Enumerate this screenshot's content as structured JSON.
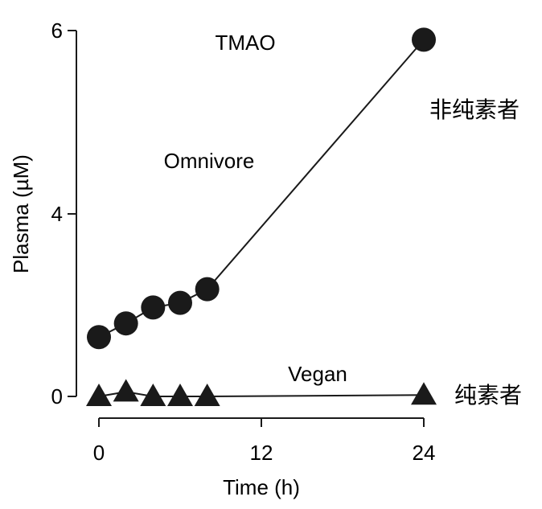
{
  "chart_data": {
    "type": "line",
    "title": "TMAO",
    "xlabel": "Time (h)",
    "ylabel": "Plasma (µM)",
    "x_ticks": [
      0,
      12,
      24
    ],
    "y_ticks": [
      0,
      4,
      6
    ],
    "xlim": [
      0,
      24
    ],
    "ylim": [
      0,
      6
    ],
    "grid": false,
    "series": [
      {
        "name": "Omnivore",
        "marker": "circle",
        "x": [
          0,
          2,
          4,
          6,
          8,
          24
        ],
        "y": [
          1.3,
          1.6,
          1.95,
          2.05,
          2.35,
          5.9
        ]
      },
      {
        "name": "Vegan",
        "marker": "triangle",
        "x": [
          0,
          2,
          4,
          6,
          8,
          24
        ],
        "y": [
          0,
          0.1,
          0,
          0,
          0,
          0.03
        ]
      }
    ],
    "annotations": {
      "omnivore_cn": "非纯素者",
      "vegan_cn": "纯素者"
    },
    "color": "#1a1a1a"
  }
}
